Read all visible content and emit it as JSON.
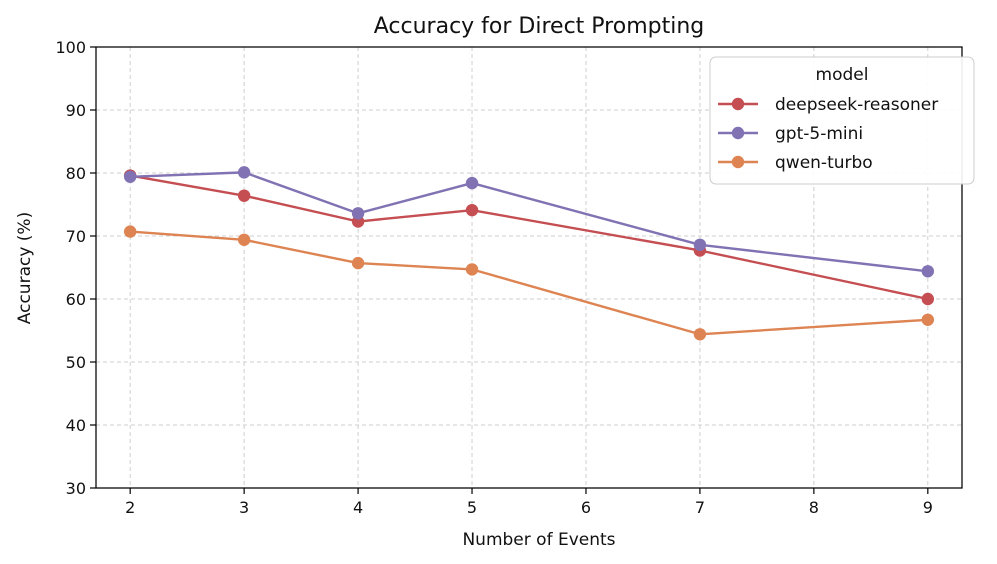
{
  "chart_data": {
    "type": "line",
    "title": "Accuracy for Direct Prompting",
    "xlabel": "Number of Events",
    "ylabel": "Accuracy (%)",
    "xlim": [
      1.7,
      9.3
    ],
    "ylim": [
      30,
      100
    ],
    "x_ticks": [
      2,
      3,
      4,
      5,
      6,
      7,
      8,
      9
    ],
    "y_ticks": [
      30,
      40,
      50,
      60,
      70,
      80,
      90,
      100
    ],
    "grid": true,
    "legend": {
      "title": "model",
      "placement": "top-right"
    },
    "series": [
      {
        "name": "deepseek-reasoner",
        "color": "#c44e52",
        "x": [
          2,
          3,
          4,
          5,
          7,
          9
        ],
        "values": [
          79.6,
          76.4,
          72.3,
          74.1,
          67.7,
          60.0
        ]
      },
      {
        "name": "gpt-5-mini",
        "color": "#8172b3",
        "x": [
          2,
          3,
          4,
          5,
          7,
          9
        ],
        "values": [
          79.4,
          80.1,
          73.6,
          78.4,
          68.6,
          64.4
        ]
      },
      {
        "name": "qwen-turbo",
        "color": "#dd8452",
        "x": [
          2,
          3,
          4,
          5,
          7,
          9
        ],
        "values": [
          70.7,
          69.4,
          65.7,
          64.7,
          54.4,
          56.7
        ]
      }
    ]
  }
}
